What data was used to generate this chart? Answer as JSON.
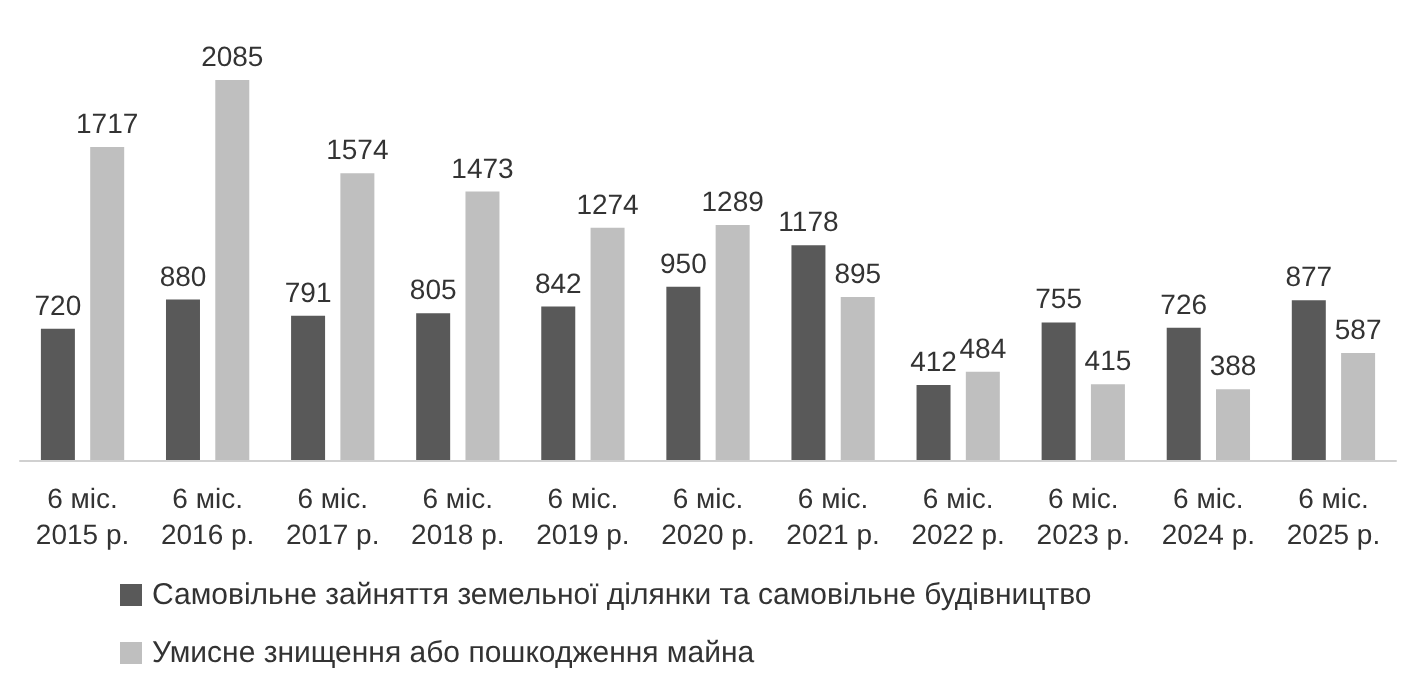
{
  "chart_data": {
    "type": "bar",
    "categories": [
      "6 міс.\n2015 р.",
      "6 міс.\n2016 р.",
      "6 міс.\n2017 р.",
      "6 міс.\n2018 р.",
      "6 міс.\n2019 р.",
      "6 міс.\n2020 р.",
      "6 міс.\n2021 р.",
      "6 міс.\n2022 р.",
      "6 міс.\n2023 р.",
      "6 міс.\n2024 р.",
      "6 міс.\n2025 р."
    ],
    "series": [
      {
        "name": "Самовільне зайняття земельної ділянки та самовільне будівництво",
        "color": "#595959",
        "values": [
          720,
          880,
          791,
          805,
          842,
          950,
          1178,
          412,
          755,
          726,
          877
        ]
      },
      {
        "name": "Умисне знищення або пошкодження майна",
        "color": "#bfbfbf",
        "values": [
          1717,
          2085,
          1574,
          1473,
          1274,
          1289,
          895,
          484,
          415,
          388,
          587
        ]
      }
    ],
    "data_labels": true,
    "legend": "bottom left"
  }
}
